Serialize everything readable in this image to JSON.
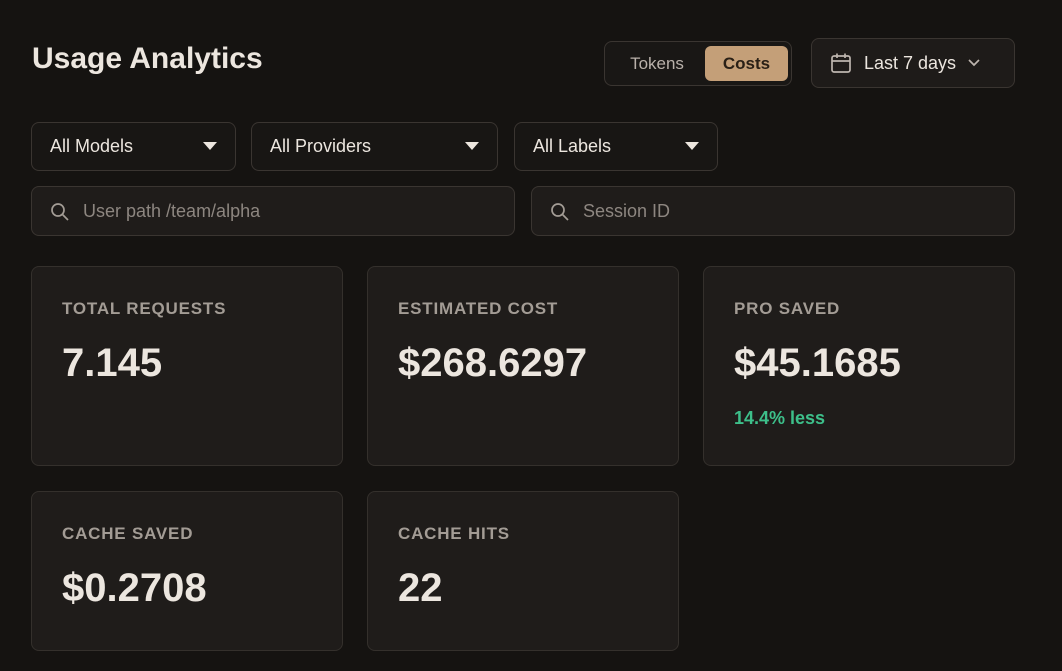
{
  "header": {
    "title": "Usage Analytics",
    "toggle": [
      "Tokens",
      "Costs"
    ],
    "date_range": "Last 7 days"
  },
  "filters": {
    "dropdowns": [
      "All Models",
      "All Providers",
      "All Labels"
    ],
    "search": [
      "User path /team/alpha",
      "Session ID"
    ]
  },
  "cards": [
    {
      "label": "TOTAL REQUESTS",
      "value": "7.145"
    },
    {
      "label": "ESTIMATED COST",
      "value": "$268.6297"
    },
    {
      "label": "PRO SAVED",
      "value": "$45.1685",
      "note": "14.4% less"
    },
    {
      "label": "CACHE SAVED",
      "value": "$0.2708"
    },
    {
      "label": "CACHE HITS",
      "value": "22"
    }
  ]
}
